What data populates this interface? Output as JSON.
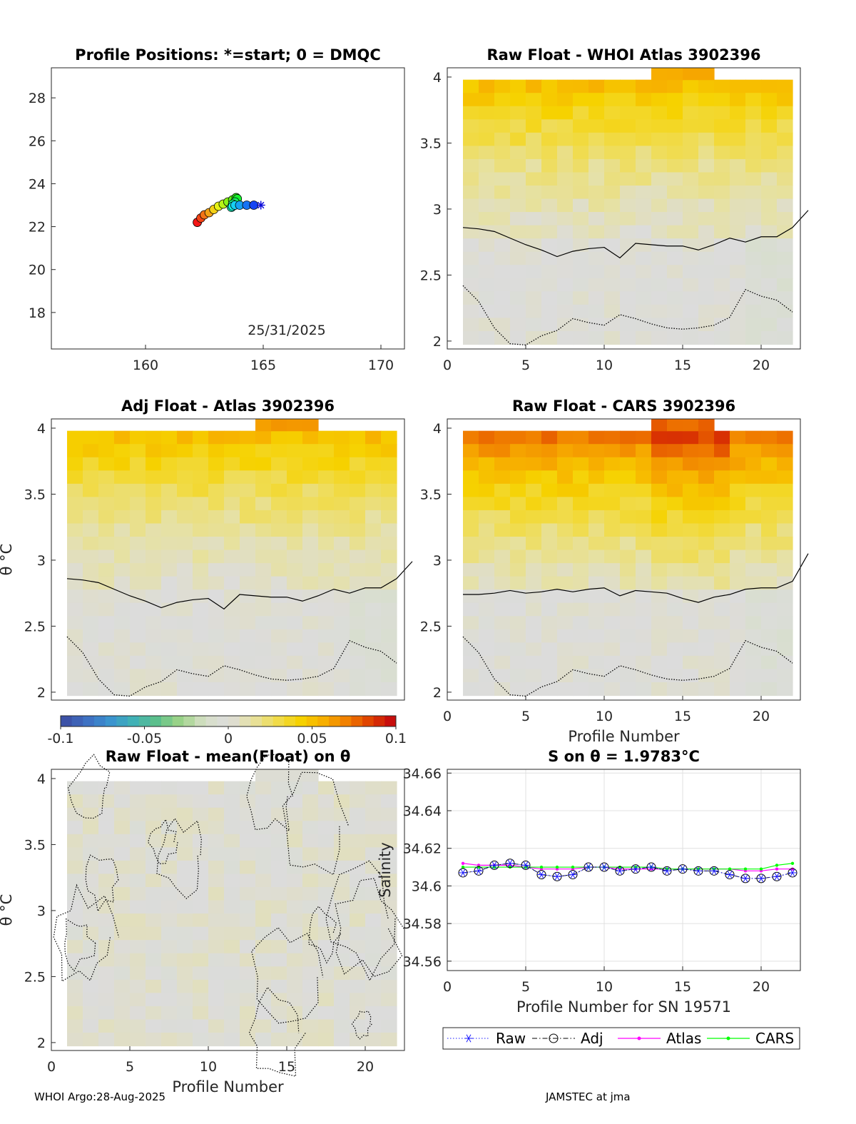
{
  "colors": {
    "raw": "#1a1aff",
    "adj": "#000000",
    "atlas": "#ff00ff",
    "cars": "#00ff00",
    "axis": "#262626",
    "grid": "#e0e0e0",
    "neutral": "#dcdcdc",
    "colormap": [
      "#3b4aa0",
      "#3f6cc0",
      "#3a91d0",
      "#3fb0b8",
      "#5cc08a",
      "#9fd488",
      "#d6dfc6",
      "#dcdcdc",
      "#e6e1a4",
      "#f0dc50",
      "#f6d200",
      "#f7ae00",
      "#f07c00",
      "#dd3a00",
      "#c00010"
    ]
  },
  "footer": {
    "left": "WHOI Argo:28-Aug-2025",
    "right": "JAMSTEC at jma"
  },
  "chart_data": [
    {
      "id": "positions",
      "type": "scatter",
      "title": "Profile Positions: *=start; 0 = DMQC",
      "xlim": [
        156,
        171
      ],
      "ylim": [
        16.3,
        29.4
      ],
      "xticks": [
        "160",
        "165",
        "170"
      ],
      "yticks": [
        "18",
        "20",
        "22",
        "24",
        "26",
        "28"
      ],
      "annotation": "25/31/2025",
      "lon": [
        164.9,
        164.6,
        164.3,
        164.0,
        163.8,
        163.7,
        163.65,
        163.7,
        163.8,
        163.9,
        163.85,
        163.7,
        163.5,
        163.3,
        163.1,
        162.9,
        162.7,
        162.5,
        162.35,
        162.2
      ],
      "lat": [
        23.0,
        23.0,
        23.0,
        23.0,
        23.0,
        22.95,
        22.9,
        23.05,
        23.15,
        23.3,
        23.35,
        23.25,
        23.15,
        23.05,
        22.95,
        22.8,
        22.65,
        22.55,
        22.4,
        22.2
      ]
    },
    {
      "id": "raw-whoi",
      "type": "heatmap",
      "title": "Raw Float - WHOI Atlas  3902396",
      "xlim": [
        0,
        22.5
      ],
      "ylim": [
        1.94,
        4.07
      ],
      "xticks": [
        "0",
        "5",
        "10",
        "15",
        "20"
      ],
      "yticks": [
        "2",
        "2.5",
        "3",
        "3.5",
        "4"
      ],
      "solid_contour": [
        2.86,
        2.85,
        2.83,
        2.78,
        2.73,
        2.69,
        2.64,
        2.68,
        2.7,
        2.71,
        2.63,
        2.74,
        2.73,
        2.72,
        2.72,
        2.69,
        2.73,
        2.78,
        2.75,
        2.79,
        2.79,
        2.86,
        2.99
      ]
    },
    {
      "id": "adj-atlas",
      "type": "heatmap",
      "title": "Adj Float - Atlas  3902396",
      "ylabel": "θ °C",
      "xlim": [
        0,
        22.5
      ],
      "ylim": [
        1.94,
        4.07
      ],
      "yticks": [
        "2",
        "2.5",
        "3",
        "3.5",
        "4"
      ],
      "solid_contour": [
        2.86,
        2.85,
        2.83,
        2.78,
        2.73,
        2.69,
        2.64,
        2.68,
        2.7,
        2.71,
        2.63,
        2.74,
        2.73,
        2.72,
        2.72,
        2.69,
        2.73,
        2.78,
        2.75,
        2.79,
        2.79,
        2.86,
        2.99
      ]
    },
    {
      "id": "raw-cars",
      "type": "heatmap",
      "title": "Raw Float - CARS  3902396",
      "xlabel": "Profile Number",
      "xlim": [
        0,
        22.5
      ],
      "ylim": [
        1.94,
        4.07
      ],
      "xticks": [
        "0",
        "5",
        "10",
        "15",
        "20"
      ],
      "yticks": [
        "2",
        "2.5",
        "3",
        "3.5",
        "4"
      ],
      "solid_contour": [
        2.74,
        2.74,
        2.75,
        2.77,
        2.75,
        2.76,
        2.78,
        2.76,
        2.78,
        2.79,
        2.73,
        2.77,
        2.76,
        2.75,
        2.71,
        2.68,
        2.72,
        2.74,
        2.78,
        2.79,
        2.79,
        2.84,
        3.05
      ]
    },
    {
      "id": "colorbar",
      "type": "colorbar",
      "vmin": -0.1,
      "vmax": 0.1,
      "ticks": [
        "-0.1",
        "-0.05",
        "0",
        "0.05",
        "0.1"
      ]
    },
    {
      "id": "mean-anom",
      "type": "heatmap",
      "title": "Raw Float - mean(Float) on θ",
      "xlabel": "Profile Number",
      "ylabel": "θ °C",
      "xlim": [
        0,
        22.5
      ],
      "ylim": [
        1.94,
        4.07
      ],
      "xticks": [
        "0",
        "5",
        "10",
        "15",
        "20"
      ],
      "yticks": [
        "2",
        "2.5",
        "3",
        "3.5",
        "4"
      ]
    },
    {
      "id": "salinity",
      "type": "line",
      "title": "S on θ = 1.9783°C",
      "xlabel": "Profile Number for SN 19571",
      "ylabel": "Salinity",
      "xlim": [
        0,
        22.5
      ],
      "ylim": [
        34.555,
        34.662
      ],
      "xticks": [
        "0",
        "5",
        "10",
        "15",
        "20"
      ],
      "yticks": [
        "34.56",
        "34.58",
        "34.6",
        "34.62",
        "34.64",
        "34.66"
      ],
      "x": [
        1,
        2,
        3,
        4,
        5,
        6,
        7,
        8,
        9,
        10,
        11,
        12,
        13,
        14,
        15,
        16,
        17,
        18,
        19,
        20,
        21,
        22
      ],
      "series": [
        {
          "name": "Raw",
          "values": [
            34.607,
            34.608,
            34.611,
            34.612,
            34.611,
            34.606,
            34.605,
            34.606,
            34.61,
            34.61,
            34.608,
            34.609,
            34.61,
            34.608,
            34.609,
            34.608,
            34.608,
            34.606,
            34.604,
            34.604,
            34.605,
            34.607
          ]
        },
        {
          "name": "Adj",
          "values": [
            34.607,
            34.608,
            34.611,
            34.612,
            34.611,
            34.606,
            34.605,
            34.606,
            34.61,
            34.61,
            34.608,
            34.609,
            34.61,
            34.608,
            34.609,
            34.608,
            34.608,
            34.606,
            34.604,
            34.604,
            34.605,
            34.607
          ]
        },
        {
          "name": "Atlas",
          "values": [
            34.612,
            34.611,
            34.611,
            34.611,
            34.61,
            34.609,
            34.609,
            34.609,
            34.61,
            34.61,
            34.609,
            34.609,
            34.609,
            34.609,
            34.609,
            34.609,
            34.609,
            34.609,
            34.608,
            34.608,
            34.609,
            34.609
          ]
        },
        {
          "name": "CARS",
          "values": [
            34.61,
            34.61,
            34.61,
            34.61,
            34.61,
            34.61,
            34.61,
            34.61,
            34.61,
            34.61,
            34.61,
            34.61,
            34.61,
            34.609,
            34.609,
            34.609,
            34.609,
            34.609,
            34.609,
            34.609,
            34.611,
            34.612
          ]
        }
      ],
      "legend": [
        "Raw",
        "Adj",
        "Atlas",
        "CARS"
      ]
    }
  ]
}
